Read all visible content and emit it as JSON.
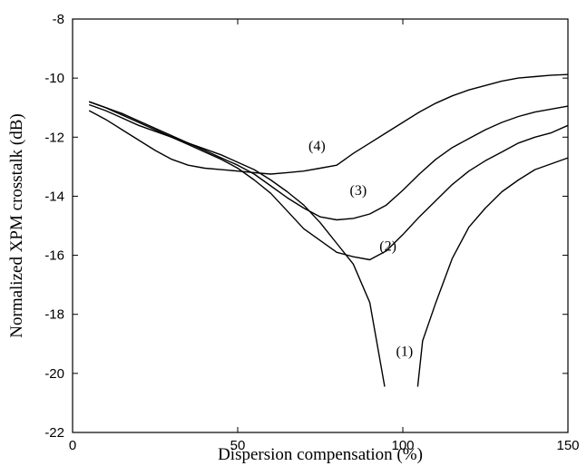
{
  "chart_data": {
    "type": "line",
    "title": "",
    "xlabel": "Dispersion compensation (%)",
    "ylabel": "Normalized XPM crosstalk (dB)",
    "xlim": [
      0,
      150
    ],
    "ylim": [
      -22,
      -8
    ],
    "xticks": [
      0,
      50,
      100,
      150
    ],
    "yticks": [
      -22,
      -20,
      -18,
      -16,
      -14,
      -12,
      -10,
      -8
    ],
    "grid": false,
    "legend": "none",
    "line_color": "#000000",
    "series": [
      {
        "x": [
          5,
          10,
          15,
          20,
          25,
          30,
          35,
          40,
          45,
          50,
          55,
          60,
          65,
          70,
          75,
          80,
          85,
          90,
          94.5
        ],
        "y": [
          -10.9,
          -11.1,
          -11.35,
          -11.6,
          -11.8,
          -12.0,
          -12.2,
          -12.4,
          -12.6,
          -12.85,
          -13.1,
          -13.45,
          -13.85,
          -14.3,
          -14.9,
          -15.6,
          -16.3,
          -17.6,
          -20.45
        ]
      },
      {
        "x": [
          104.5,
          106,
          110,
          115,
          120,
          125,
          130,
          135,
          140,
          145,
          150
        ],
        "y": [
          -20.45,
          -18.9,
          -17.6,
          -16.1,
          -15.05,
          -14.4,
          -13.85,
          -13.45,
          -13.1,
          -12.9,
          -12.7
        ]
      },
      {
        "x": [
          5,
          10,
          15,
          20,
          25,
          30,
          35,
          40,
          45,
          50,
          55,
          60,
          65,
          70,
          75,
          80,
          85,
          90,
          95,
          100,
          105,
          110,
          115,
          120,
          125,
          130,
          135,
          140,
          145,
          150
        ],
        "y": [
          -10.8,
          -11.0,
          -11.25,
          -11.5,
          -11.75,
          -12.0,
          -12.25,
          -12.5,
          -12.75,
          -13.05,
          -13.45,
          -13.9,
          -14.5,
          -15.1,
          -15.5,
          -15.9,
          -16.05,
          -16.15,
          -15.85,
          -15.3,
          -14.7,
          -14.15,
          -13.6,
          -13.15,
          -12.8,
          -12.5,
          -12.2,
          -12.0,
          -11.85,
          -11.6
        ]
      },
      {
        "x": [
          5,
          10,
          15,
          20,
          25,
          30,
          35,
          40,
          45,
          50,
          55,
          60,
          65,
          70,
          75,
          80,
          85,
          90,
          95,
          100,
          105,
          110,
          115,
          120,
          125,
          130,
          135,
          140,
          145,
          150
        ],
        "y": [
          -10.8,
          -11.0,
          -11.2,
          -11.45,
          -11.7,
          -11.95,
          -12.2,
          -12.45,
          -12.7,
          -12.95,
          -13.25,
          -13.65,
          -14.05,
          -14.4,
          -14.7,
          -14.8,
          -14.75,
          -14.6,
          -14.3,
          -13.8,
          -13.25,
          -12.75,
          -12.35,
          -12.05,
          -11.75,
          -11.5,
          -11.3,
          -11.15,
          -11.05,
          -10.95
        ]
      },
      {
        "x": [
          5,
          10,
          15,
          20,
          25,
          30,
          35,
          40,
          45,
          50,
          55,
          60,
          65,
          70,
          75,
          80,
          85,
          90,
          95,
          100,
          105,
          110,
          115,
          120,
          125,
          130,
          135,
          140,
          145,
          150
        ],
        "y": [
          -11.1,
          -11.4,
          -11.75,
          -12.1,
          -12.45,
          -12.75,
          -12.95,
          -13.05,
          -13.1,
          -13.15,
          -13.2,
          -13.25,
          -13.2,
          -13.15,
          -13.05,
          -12.95,
          -12.55,
          -12.2,
          -11.85,
          -11.5,
          -11.15,
          -10.85,
          -10.6,
          -10.4,
          -10.25,
          -10.1,
          -10.0,
          -9.95,
          -9.9,
          -9.88
        ]
      }
    ],
    "annotations": [
      {
        "text": "(1)",
        "x": 100.5,
        "y": -19.4
      },
      {
        "text": "(2)",
        "x": 95.5,
        "y": -15.85
      },
      {
        "text": "(3)",
        "x": 86.5,
        "y": -13.95
      },
      {
        "text": "(4)",
        "x": 74,
        "y": -12.45
      }
    ]
  }
}
